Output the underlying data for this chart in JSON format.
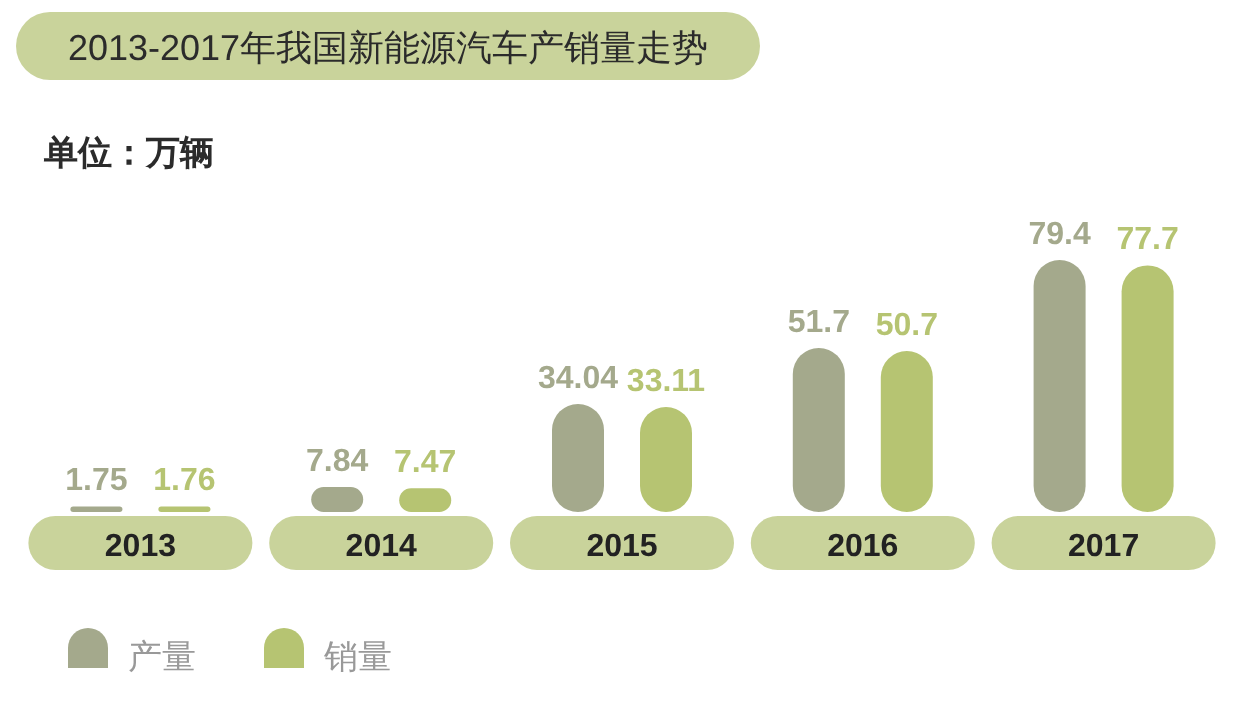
{
  "chart_data": {
    "type": "bar",
    "title": "2013-2017年我国新能源汽车产销量走势",
    "subtitle": "单位：万辆",
    "categories": [
      "2013",
      "2014",
      "2015",
      "2016",
      "2017"
    ],
    "series": [
      {
        "name": "产量",
        "color": "#a4a98c",
        "values": [
          1.75,
          7.84,
          34.04,
          51.7,
          79.4
        ]
      },
      {
        "name": "销量",
        "color": "#b6c472",
        "values": [
          1.76,
          7.47,
          33.11,
          50.7,
          77.7
        ]
      }
    ],
    "data_labels": true,
    "legend": "bottom left"
  }
}
